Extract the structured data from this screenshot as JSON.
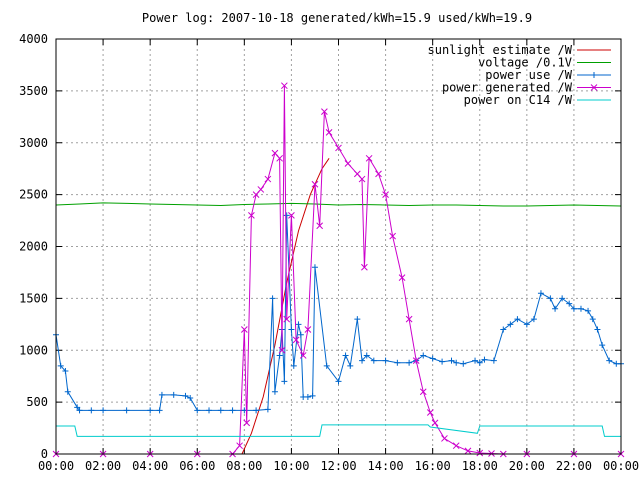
{
  "chart_data": {
    "type": "line",
    "title": "Power log: 2007-10-18 generated/kWh=15.9 used/kWh=19.9",
    "xlabel": "",
    "ylabel": "",
    "xlim": [
      "00:00",
      "24:00"
    ],
    "ylim": [
      0,
      4000
    ],
    "x_unit": "hours",
    "grid": true,
    "legend_position": "top-right",
    "x_ticks": [
      "00:00",
      "02:00",
      "04:00",
      "06:00",
      "08:00",
      "10:00",
      "12:00",
      "14:00",
      "16:00",
      "18:00",
      "20:00",
      "22:00",
      "00:00"
    ],
    "y_ticks": [
      "0",
      "500",
      "1000",
      "1500",
      "2000",
      "2500",
      "3000",
      "3500",
      "4000"
    ],
    "series": [
      {
        "name": "sunlight estimate /W",
        "color": "#cc0000",
        "marker": "none",
        "x": [
          7.9,
          8.3,
          8.8,
          9.3,
          9.8,
          10.3,
          10.8,
          11.3,
          11.6
        ],
        "y": [
          0,
          200,
          550,
          1050,
          1650,
          2150,
          2500,
          2750,
          2850
        ]
      },
      {
        "name": "voltage /0.1V",
        "color": "#00a000",
        "marker": "none",
        "x": [
          0,
          1,
          2,
          3,
          4,
          5,
          6,
          7,
          8,
          9,
          10,
          11,
          12,
          13,
          14,
          15,
          16,
          17,
          18,
          19,
          20,
          21,
          22,
          23,
          24
        ],
        "y": [
          2400,
          2410,
          2420,
          2415,
          2410,
          2405,
          2400,
          2395,
          2405,
          2410,
          2415,
          2410,
          2400,
          2405,
          2400,
          2395,
          2400,
          2400,
          2395,
          2390,
          2390,
          2395,
          2400,
          2395,
          2390
        ]
      },
      {
        "name": "power use /W",
        "color": "#0066cc",
        "marker": "plus",
        "x": [
          0,
          0.2,
          0.4,
          0.5,
          0.9,
          1.0,
          1.5,
          2,
          3,
          4,
          4.4,
          4.5,
          5,
          5.5,
          5.7,
          6,
          6.5,
          7,
          7.5,
          8,
          8.5,
          9,
          9.2,
          9.3,
          9.5,
          9.6,
          9.7,
          9.8,
          10.0,
          10.1,
          10.3,
          10.4,
          10.5,
          10.7,
          10.9,
          11.0,
          11.5,
          12,
          12.3,
          12.5,
          12.8,
          13,
          13.2,
          13.5,
          14,
          14.5,
          15,
          15.3,
          15.6,
          16,
          16.4,
          16.8,
          17,
          17.3,
          17.8,
          18,
          18.2,
          18.6,
          19,
          19.3,
          19.6,
          20,
          20.3,
          20.6,
          21,
          21.2,
          21.5,
          21.8,
          22,
          22.3,
          22.6,
          22.8,
          23,
          23.2,
          23.5,
          23.8,
          24
        ],
        "y": [
          1150,
          850,
          800,
          600,
          450,
          420,
          420,
          420,
          420,
          420,
          420,
          570,
          570,
          560,
          540,
          420,
          420,
          420,
          420,
          420,
          420,
          430,
          1500,
          600,
          950,
          1200,
          700,
          2300,
          1200,
          850,
          1250,
          1150,
          550,
          550,
          560,
          1800,
          850,
          700,
          950,
          850,
          1300,
          900,
          950,
          900,
          900,
          880,
          880,
          900,
          950,
          920,
          890,
          900,
          880,
          870,
          900,
          880,
          910,
          900,
          1200,
          1250,
          1300,
          1250,
          1300,
          1550,
          1500,
          1400,
          1500,
          1450,
          1400,
          1400,
          1380,
          1300,
          1200,
          1050,
          900,
          870,
          870
        ]
      },
      {
        "name": "power generated /W",
        "color": "#cc00cc",
        "marker": "x",
        "x": [
          0,
          2,
          4,
          6,
          7.5,
          7.8,
          8.0,
          8.1,
          8.3,
          8.5,
          8.7,
          9.0,
          9.3,
          9.5,
          9.6,
          9.7,
          9.8,
          10.0,
          10.2,
          10.5,
          10.7,
          11.0,
          11.2,
          11.4,
          11.6,
          12.0,
          12.4,
          12.8,
          13.0,
          13.1,
          13.3,
          13.7,
          14.0,
          14.3,
          14.7,
          15.0,
          15.3,
          15.6,
          15.9,
          16.1,
          16.5,
          17.0,
          17.5,
          18.0,
          18.5,
          19,
          20,
          22,
          24
        ],
        "y": [
          0,
          0,
          0,
          0,
          0,
          80,
          1200,
          300,
          2300,
          2500,
          2550,
          2650,
          2900,
          2850,
          1000,
          3550,
          1300,
          2300,
          1100,
          950,
          1200,
          2600,
          2200,
          3300,
          3100,
          2950,
          2800,
          2700,
          2650,
          1800,
          2850,
          2700,
          2500,
          2100,
          1700,
          1300,
          900,
          600,
          400,
          300,
          150,
          80,
          30,
          10,
          5,
          0,
          0,
          0,
          0
        ]
      },
      {
        "name": "power on C14 /W",
        "color": "#00cccc",
        "marker": "none",
        "x": [
          0,
          0.8,
          0.9,
          6.0,
          6.05,
          11.2,
          11.3,
          15.8,
          15.9,
          17.9,
          18.0,
          23.2,
          23.3,
          24
        ],
        "y": [
          270,
          270,
          170,
          170,
          170,
          170,
          280,
          280,
          260,
          200,
          270,
          270,
          170,
          170
        ]
      }
    ]
  }
}
